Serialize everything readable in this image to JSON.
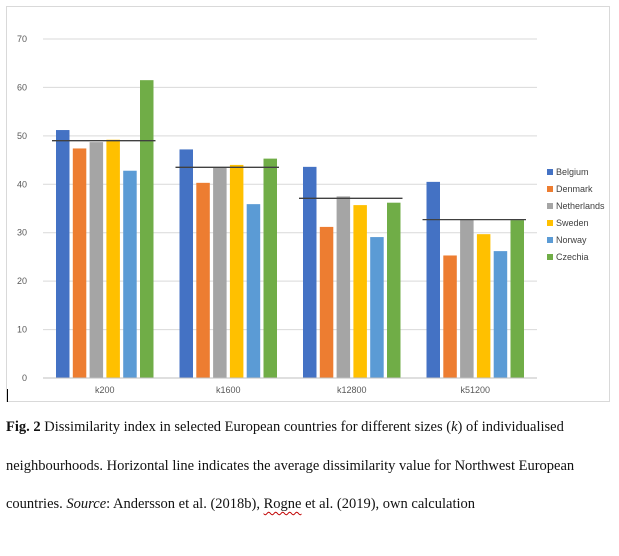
{
  "chart_data": {
    "type": "bar",
    "categories": [
      "k200",
      "k1600",
      "k12800",
      "k51200"
    ],
    "series": [
      {
        "name": "Belgium",
        "color": "#4472c4",
        "values": [
          51.2,
          47.2,
          43.6,
          40.5
        ]
      },
      {
        "name": "Denmark",
        "color": "#ed7d31",
        "values": [
          47.4,
          40.3,
          31.2,
          25.3
        ]
      },
      {
        "name": "Netherlands",
        "color": "#a5a5a5",
        "values": [
          48.7,
          43.5,
          37.5,
          32.7
        ]
      },
      {
        "name": "Sweden",
        "color": "#ffc000",
        "values": [
          49.2,
          44.0,
          35.7,
          29.7
        ]
      },
      {
        "name": "Norway",
        "color": "#5b9bd5",
        "values": [
          42.8,
          35.9,
          29.1,
          26.2
        ]
      },
      {
        "name": "Czechia",
        "color": "#70ad47",
        "values": [
          61.5,
          45.3,
          36.2,
          32.6
        ]
      }
    ],
    "average_lines": {
      "name": "Northwest European average",
      "values": [
        49.0,
        43.5,
        37.1,
        32.7
      ]
    },
    "ylim": [
      0,
      70
    ],
    "yticks": [
      "0",
      "10",
      "20",
      "30",
      "40",
      "50",
      "60",
      "70"
    ],
    "grid": true,
    "legend": "right",
    "title": "",
    "xlabel": "",
    "ylabel": ""
  },
  "caption": {
    "fig_label": "Fig. 2",
    "text_1": " Dissimilarity  index in selected European countries for different sizes (",
    "k_symbol": "k",
    "text_2": ") of individualised neighbourhoods. Horizontal line indicates the average dissimilarity value for Northwest European countries. ",
    "source_label": "Source",
    "text_3": ": Andersson et al. (2018b), ",
    "rogne": "Rogne",
    "text_4": " et al. (2019), own calculation"
  }
}
